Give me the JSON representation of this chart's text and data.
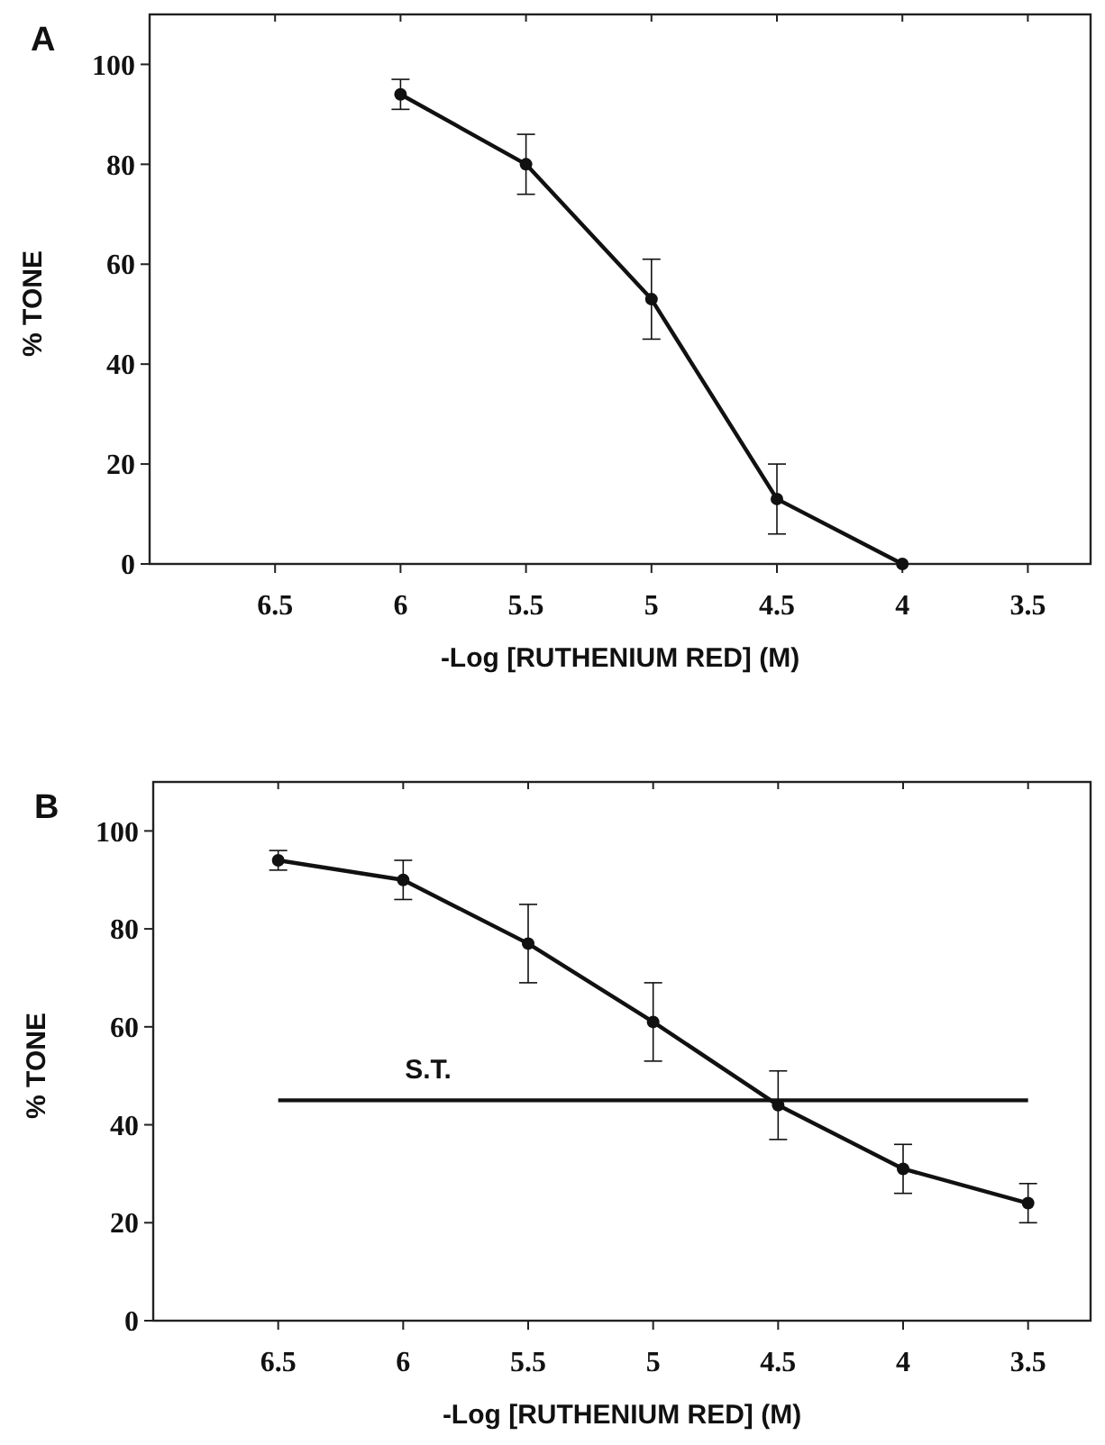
{
  "chart_data": [
    {
      "type": "line",
      "title": "A",
      "xlabel": "-Log [RUTHENIUM RED] (M)",
      "ylabel": "% TONE",
      "xlim": [
        7,
        3.25
      ],
      "xticks": [
        6.5,
        6,
        5.5,
        5,
        4.5,
        4,
        3.5
      ],
      "ylim": [
        0,
        110
      ],
      "yticks": [
        0,
        20,
        40,
        60,
        80,
        100
      ],
      "marker": "circle",
      "grid": false,
      "series": [
        {
          "color": "#111111",
          "x": [
            6,
            5.5,
            5,
            4.5,
            4
          ],
          "values": [
            94,
            80,
            53,
            13,
            0
          ],
          "errors": [
            3,
            6,
            8,
            7,
            null
          ]
        }
      ]
    },
    {
      "type": "line",
      "title": "B",
      "xlabel": "-Log [RUTHENIUM RED] (M)",
      "ylabel": "% TONE",
      "xlim": [
        7,
        3.25
      ],
      "xticks": [
        6.5,
        6,
        5.5,
        5,
        4.5,
        4,
        3.5
      ],
      "ylim": [
        0,
        110
      ],
      "yticks": [
        0,
        20,
        40,
        60,
        80,
        100
      ],
      "marker": "circle",
      "grid": false,
      "series": [
        {
          "color": "#111111",
          "x": [
            6.5,
            6,
            5.5,
            5,
            4.5,
            4,
            3.5
          ],
          "values": [
            94,
            90,
            77,
            61,
            44,
            31,
            24
          ],
          "errors": [
            2,
            4,
            8,
            8,
            7,
            5,
            4
          ]
        },
        {
          "name": "S.T.",
          "color": "#111111",
          "x": [
            6.5,
            3.5
          ],
          "values": [
            45,
            45
          ],
          "marker": "none"
        }
      ]
    }
  ]
}
